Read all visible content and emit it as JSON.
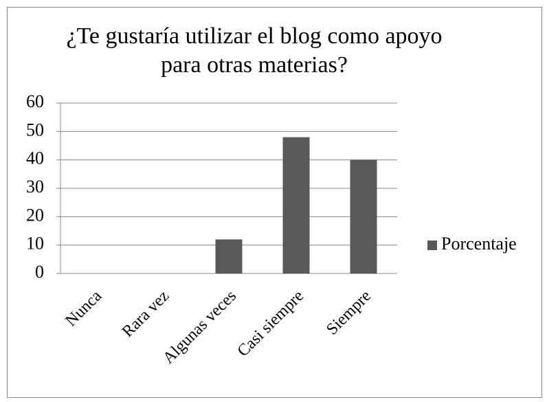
{
  "chart_data": {
    "type": "bar",
    "title": "¿Te gustaría utilizar el blog como apoyo para otras materias?",
    "categories": [
      "Nunca",
      "Rara vez",
      "Algunas veces",
      "Casi siempre",
      "Siempre"
    ],
    "series": [
      {
        "name": "Porcentaje",
        "color": "#595959",
        "values": [
          0,
          0,
          12,
          48,
          40
        ]
      }
    ],
    "ylim": [
      0,
      60
    ],
    "yticks": [
      0,
      10,
      20,
      30,
      40,
      50,
      60
    ],
    "grid": true,
    "legend": "right"
  }
}
